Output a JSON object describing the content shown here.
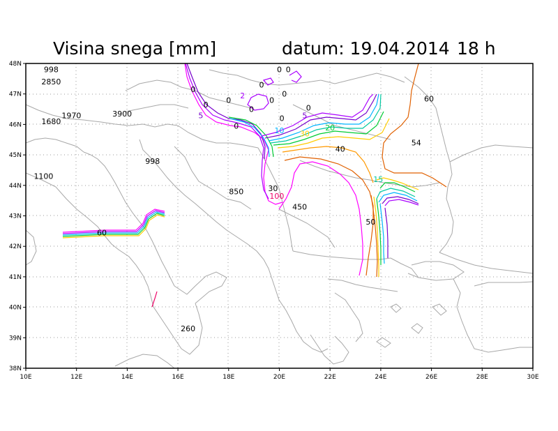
{
  "header": {
    "title": "Visina snega [mm]",
    "date_label": "datum: 19.04.2014",
    "hour_label": "18 h"
  },
  "axes": {
    "x_ticks": [
      "10E",
      "12E",
      "14E",
      "16E",
      "18E",
      "20E",
      "22E",
      "24E",
      "26E",
      "28E",
      "30E"
    ],
    "y_ticks": [
      "48N",
      "47N",
      "46N",
      "45N",
      "44N",
      "43N",
      "42N",
      "41N",
      "40N",
      "39N",
      "38N"
    ]
  },
  "map_data": {
    "extent": {
      "lon": [
        10,
        30
      ],
      "lat": [
        38,
        48
      ]
    },
    "grid": true,
    "contour_levels": [
      0,
      2,
      5,
      10,
      15,
      20,
      30,
      40,
      50,
      54,
      60,
      100
    ],
    "colors": {
      "c0": "#ff00ff",
      "c2": "#aa00ff",
      "c5": "#7700cc",
      "c10": "#00b4ff",
      "c15": "#00c8a0",
      "c20": "#00cc33",
      "c30": "#ffcc00",
      "c40": "#ff9900",
      "c50": "#e06000",
      "c100": "#ee0066"
    },
    "station_values": [
      {
        "text": "998",
        "lon": 11.0,
        "lat": 47.8
      },
      {
        "text": "2850",
        "lon": 11.0,
        "lat": 47.4
      },
      {
        "text": "1970",
        "lon": 11.8,
        "lat": 46.3
      },
      {
        "text": "1680",
        "lon": 11.0,
        "lat": 46.1
      },
      {
        "text": "3900",
        "lon": 13.8,
        "lat": 46.35
      },
      {
        "text": "998",
        "lon": 15.0,
        "lat": 44.8
      },
      {
        "text": "1100",
        "lon": 10.7,
        "lat": 44.3
      },
      {
        "text": "850",
        "lon": 18.3,
        "lat": 43.8
      },
      {
        "text": "450",
        "lon": 20.8,
        "lat": 43.3
      },
      {
        "text": "260",
        "lon": 16.4,
        "lat": 39.3
      }
    ],
    "contour_labels": [
      {
        "text": "0",
        "lon": 20.0,
        "lat": 47.8,
        "color": "#000"
      },
      {
        "text": "0",
        "lon": 20.35,
        "lat": 47.8,
        "color": "#000"
      },
      {
        "text": "0",
        "lon": 19.3,
        "lat": 47.3,
        "color": "#000"
      },
      {
        "text": "0",
        "lon": 20.2,
        "lat": 47.0,
        "color": "#000"
      },
      {
        "text": "0",
        "lon": 19.7,
        "lat": 46.8,
        "color": "#000"
      },
      {
        "text": "0",
        "lon": 16.6,
        "lat": 47.15,
        "color": "#000"
      },
      {
        "text": "0",
        "lon": 18.0,
        "lat": 46.8,
        "color": "#000"
      },
      {
        "text": "0",
        "lon": 17.1,
        "lat": 46.65,
        "color": "#000"
      },
      {
        "text": "0",
        "lon": 18.9,
        "lat": 46.5,
        "color": "#000"
      },
      {
        "text": "0",
        "lon": 20.1,
        "lat": 46.2,
        "color": "#000"
      },
      {
        "text": "0",
        "lon": 18.3,
        "lat": 45.95,
        "color": "#000"
      },
      {
        "text": "0",
        "lon": 21.15,
        "lat": 46.55,
        "color": "#000"
      },
      {
        "text": "2",
        "lon": 18.55,
        "lat": 46.95,
        "color": "#aa00ff"
      },
      {
        "text": "5",
        "lon": 16.9,
        "lat": 46.3,
        "color": "#7700cc"
      },
      {
        "text": "5",
        "lon": 21.0,
        "lat": 46.3,
        "color": "#7700cc"
      },
      {
        "text": "10",
        "lon": 20.0,
        "lat": 45.8,
        "color": "#00b4ff"
      },
      {
        "text": "15",
        "lon": 23.9,
        "lat": 44.2,
        "color": "#00c8a0"
      },
      {
        "text": "20",
        "lon": 22.0,
        "lat": 45.9,
        "color": "#00cc33"
      },
      {
        "text": "30",
        "lon": 21.0,
        "lat": 45.7,
        "color": "#ffcc00"
      },
      {
        "text": "30",
        "lon": 19.75,
        "lat": 43.9,
        "color": "#000"
      },
      {
        "text": "40",
        "lon": 22.4,
        "lat": 45.2,
        "color": "#000"
      },
      {
        "text": "50",
        "lon": 23.6,
        "lat": 42.8,
        "color": "#000"
      },
      {
        "text": "54",
        "lon": 25.4,
        "lat": 45.4,
        "color": "#000"
      },
      {
        "text": "60",
        "lon": 25.9,
        "lat": 46.85,
        "color": "#000"
      },
      {
        "text": "60",
        "lon": 13.0,
        "lat": 42.45,
        "color": "#000"
      },
      {
        "text": "100",
        "lon": 19.9,
        "lat": 43.65,
        "color": "#ee0066"
      }
    ]
  }
}
